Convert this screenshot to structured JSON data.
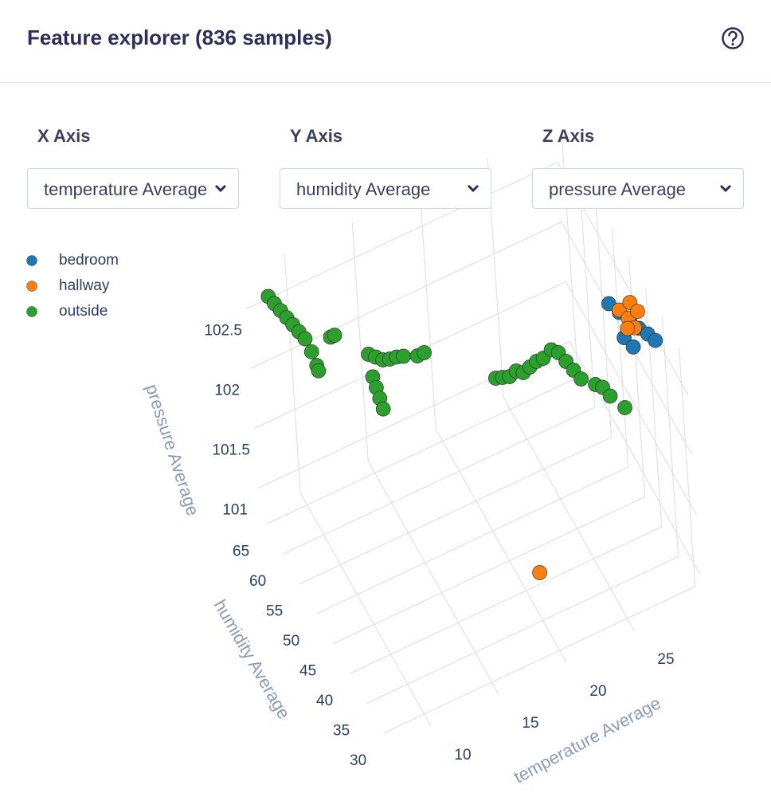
{
  "header": {
    "title": "Feature explorer (836 samples)"
  },
  "controls": [
    {
      "label": "X Axis",
      "value": "temperature Average"
    },
    {
      "label": "Y Axis",
      "value": "humidity Average"
    },
    {
      "label": "Z Axis",
      "value": "pressure Average"
    }
  ],
  "chart_data": {
    "type": "scatter3d",
    "xlabel": "temperature Average",
    "ylabel": "humidity Average",
    "zlabel": "pressure Average",
    "xlim": [
      7,
      30
    ],
    "ylim": [
      28,
      67
    ],
    "zlim": [
      100.8,
      102.8
    ],
    "xticks": [
      10,
      15,
      20,
      25
    ],
    "yticks": [
      30,
      35,
      40,
      45,
      50,
      55,
      60,
      65
    ],
    "zticks": [
      101,
      101.5,
      102,
      102.5
    ],
    "grid": true,
    "series": [
      {
        "name": "bedroom",
        "color": "#1f77b4",
        "x": [
          27.5,
          28.0,
          28.5,
          27.8,
          28.9,
          29.3,
          29.6,
          28.2
        ],
        "y": [
          41,
          40,
          39,
          38,
          38,
          37,
          36,
          37
        ],
        "z": [
          102.75,
          102.7,
          102.65,
          102.6,
          102.62,
          102.6,
          102.58,
          102.55
        ]
      },
      {
        "name": "hallway",
        "color": "#ff7f0e",
        "x": [
          28.0,
          28.4,
          28.8,
          29.1,
          28.6,
          28.3,
          20
        ],
        "y": [
          40,
          39,
          40,
          39,
          38,
          39,
          35
        ],
        "z": [
          102.72,
          102.68,
          102.74,
          102.7,
          102.64,
          102.6,
          101.2
        ]
      },
      {
        "name": "outside",
        "color": "#2ca02c",
        "x": [
          8.0,
          8.3,
          8.6,
          8.9,
          9.2,
          9.5,
          9.8,
          10.1,
          10.3,
          10.4,
          11,
          11.3,
          13,
          13.5,
          14,
          14.5,
          15,
          15.5,
          16.5,
          17,
          13.2,
          13.4,
          13.6,
          13.8,
          22,
          22.5,
          23,
          23.5,
          24,
          24.5,
          25,
          25.5,
          24,
          24.5,
          25,
          25.5,
          26,
          27,
          27.5,
          28,
          29
        ],
        "y": [
          64,
          63.5,
          63,
          62.5,
          62,
          61.5,
          61,
          60.5,
          60,
          60,
          58,
          58,
          55,
          55,
          55,
          55,
          55,
          55,
          55,
          55,
          55,
          55,
          55,
          55,
          55,
          55,
          55,
          55,
          55,
          55,
          55,
          55,
          45,
          45,
          45,
          45,
          45,
          45,
          45,
          45,
          45
        ],
        "z": [
          102.7,
          102.65,
          102.6,
          102.55,
          102.5,
          102.45,
          102.4,
          102.3,
          102.2,
          102.15,
          102.5,
          102.5,
          102.4,
          102.35,
          102.3,
          102.28,
          102.27,
          102.25,
          102.2,
          102.2,
          102.2,
          102.1,
          102.0,
          101.9,
          101.72,
          101.7,
          101.68,
          101.7,
          101.66,
          101.68,
          101.7,
          101.7,
          102.35,
          102.3,
          102.2,
          102.1,
          102.0,
          101.9,
          101.85,
          101.75,
          101.6
        ]
      }
    ]
  }
}
